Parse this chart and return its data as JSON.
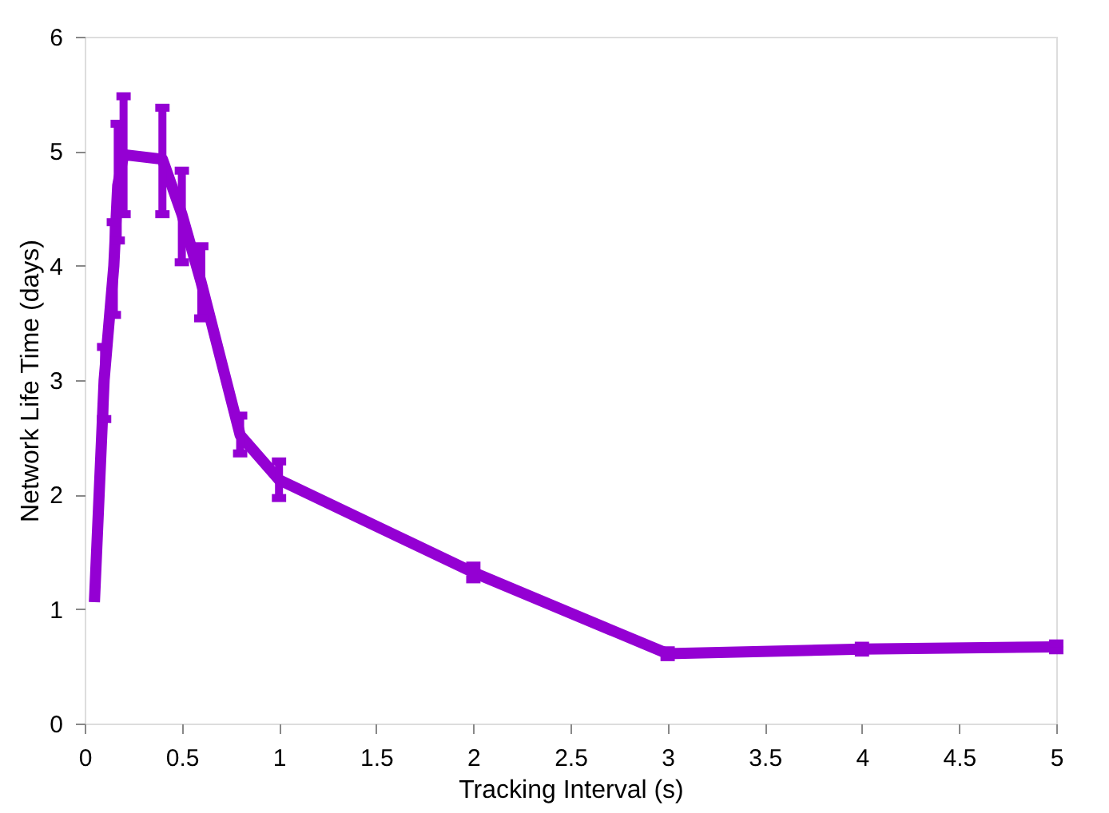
{
  "chart_data": {
    "type": "line",
    "xlabel": "Tracking Interval (s)",
    "ylabel": "Network Life Time (days)",
    "x": [
      0.05,
      0.1,
      0.15,
      0.17,
      0.2,
      0.4,
      0.5,
      0.6,
      0.8,
      1,
      2,
      3,
      4,
      5
    ],
    "series": [
      {
        "color": "#9400d3",
        "values": [
          1.06,
          3.0,
          4.0,
          4.7,
          4.97,
          4.93,
          4.45,
          3.85,
          2.52,
          2.13,
          1.32,
          0.61,
          0.65,
          0.67
        ],
        "errors": [
          null,
          [
            2.66,
            3.29
          ],
          [
            3.57,
            4.38
          ],
          [
            4.22,
            5.24
          ],
          [
            4.45,
            5.48
          ],
          [
            4.45,
            5.38
          ],
          [
            4.03,
            4.83
          ],
          [
            3.54,
            4.17
          ],
          [
            2.36,
            2.69
          ],
          [
            1.97,
            2.29
          ],
          [
            1.26,
            1.38
          ],
          [
            0.58,
            0.64
          ],
          [
            0.62,
            0.68
          ],
          [
            0.64,
            0.7
          ]
        ]
      }
    ],
    "xlim": [
      0,
      5
    ],
    "xticks": [
      0,
      0.5,
      1,
      1.5,
      2,
      2.5,
      3,
      3.5,
      4,
      4.5,
      5
    ],
    "ylim": [
      0,
      6
    ],
    "yticks": [
      0,
      1,
      2,
      3,
      4,
      5,
      6
    ],
    "grid": false,
    "line_style": "solid"
  }
}
